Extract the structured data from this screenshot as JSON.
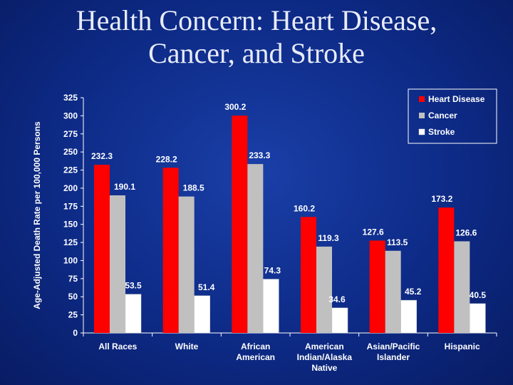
{
  "slide": {
    "title_line1": "Health Concern: Heart Disease,",
    "title_line2": "Cancer, and Stroke"
  },
  "chart_data": {
    "type": "bar",
    "title": "",
    "ylabel": "Age-Adjusted Death Rate per 100,000 Persons",
    "xlabel": "",
    "ylim": [
      0,
      325
    ],
    "yticks": [
      0,
      25,
      50,
      75,
      100,
      125,
      150,
      175,
      200,
      225,
      250,
      275,
      300,
      325
    ],
    "grid": false,
    "legend": "top-right",
    "categories": [
      [
        "All Races"
      ],
      [
        "White"
      ],
      [
        "African",
        "American"
      ],
      [
        "American",
        "Indian/Alaska",
        "Native"
      ],
      [
        "Asian/Pacific",
        "Islander"
      ],
      [
        "Hispanic"
      ]
    ],
    "series": [
      {
        "name": "Heart Disease",
        "color": "#ff0000",
        "values": [
          232.3,
          228.2,
          300.2,
          160.2,
          127.6,
          173.2
        ]
      },
      {
        "name": "Cancer",
        "color": "#c0c0c0",
        "values": [
          190.1,
          188.5,
          233.3,
          119.3,
          113.5,
          126.6
        ]
      },
      {
        "name": "Stroke",
        "color": "#ffffff",
        "values": [
          53.5,
          51.4,
          74.3,
          34.6,
          45.2,
          40.5
        ]
      }
    ],
    "data_labels": [
      [
        "232.3",
        "228.2",
        "300.2",
        "160.2",
        "127.6",
        "173.2"
      ],
      [
        "190.1",
        "188.5",
        "233.3",
        "119.3",
        "113.5",
        "126.6"
      ],
      [
        "53.5",
        "51.4",
        "74.3",
        "34.6",
        "45.2",
        "40.5"
      ]
    ]
  }
}
